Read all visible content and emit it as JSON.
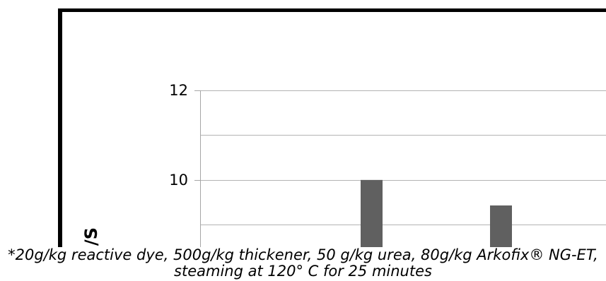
{
  "chart_data": {
    "type": "bar",
    "values": [
      10.0,
      9.43
    ],
    "ylabel": "/S",
    "ylim": [
      8.5,
      12
    ],
    "yticks": [
      12,
      10
    ],
    "ytick_labels": [
      "12",
      "10"
    ],
    "gridlines": [
      12,
      11,
      10,
      9
    ],
    "grid": true
  },
  "caption": {
    "line1": "*20g/kg reactive dye, 500g/kg thickener, 50 g/kg urea, 80g/kg Arkofix® NG-ET,",
    "line2": "steaming at 120° C for 25 minutes"
  },
  "colors": {
    "bar": "#606060",
    "gridline": "#b3b3b3",
    "axis": "#a6a6a6",
    "frame": "#000000",
    "background": "#ffffff"
  }
}
